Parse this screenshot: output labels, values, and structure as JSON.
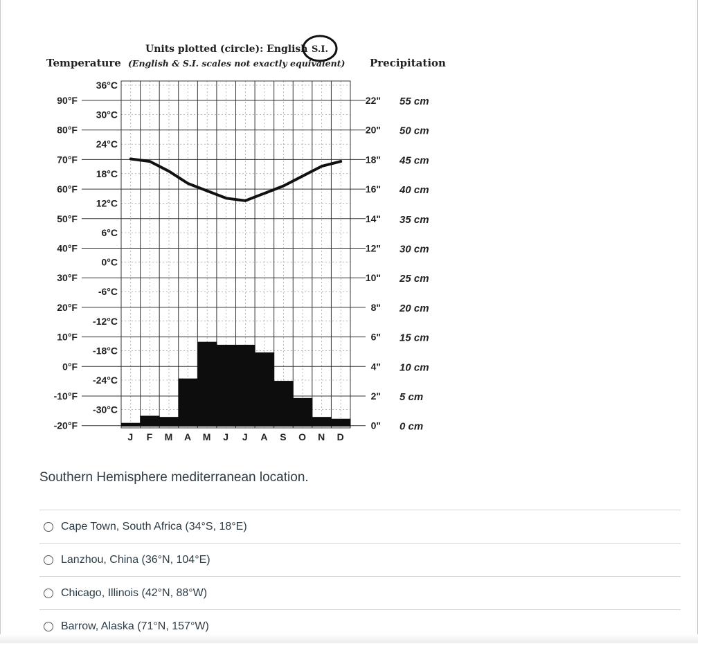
{
  "chart_data": {
    "type": "climograph",
    "units_title": "Units plotted (circle): English",
    "units_circled": "S.I.",
    "left_title": "Temperature",
    "subtitle": "(English & S.I. scales not exactly equivalent)",
    "right_title": "Precipitation",
    "months": [
      "J",
      "F",
      "M",
      "A",
      "M",
      "J",
      "J",
      "A",
      "S",
      "O",
      "N",
      "D"
    ],
    "temp_f_ticks": [
      "90°F",
      "80°F",
      "70°F",
      "60°F",
      "50°F",
      "40°F",
      "30°F",
      "20°F",
      "10°F",
      "0°F",
      "-10°F",
      "-20°F"
    ],
    "temp_f_values": [
      90,
      80,
      70,
      60,
      50,
      40,
      30,
      20,
      10,
      0,
      -10,
      -20
    ],
    "temp_c_ticks": [
      "36°C",
      "30°C",
      "24°C",
      "18°C",
      "12°C",
      "6°C",
      "0°C",
      "-6°C",
      "-12°C",
      "-18°C",
      "-24°C",
      "-30°C"
    ],
    "temp_c_values": [
      36,
      30,
      24,
      18,
      12,
      6,
      0,
      -6,
      -12,
      -18,
      -24,
      -30
    ],
    "precip_in_ticks": [
      "22\"",
      "20\"",
      "18\"",
      "16\"",
      "14\"",
      "12\"",
      "10\"",
      "8\"",
      "6\"",
      "4\"",
      "2\"",
      "0\""
    ],
    "precip_cm_ticks": [
      "55 cm",
      "50 cm",
      "45 cm",
      "40 cm",
      "35 cm",
      "30 cm",
      "25 cm",
      "20 cm",
      "15 cm",
      "10 cm",
      "5 cm",
      "0 cm"
    ],
    "temperature_c": [
      21,
      20.5,
      18.5,
      16,
      14.5,
      13,
      12.5,
      14,
      15.5,
      17.5,
      19.5,
      20.5
    ],
    "precipitation_cm": [
      0.5,
      1.7,
      1.5,
      8.0,
      14.2,
      13.7,
      13.7,
      12.4,
      7.6,
      4.7,
      1.5,
      1.2
    ]
  },
  "question": {
    "caption": "Southern Hemisphere mediterranean location."
  },
  "answers": [
    "Cape Town, South Africa (34°S, 18°E)",
    "Lanzhou, China (36°N, 104°E)",
    "Chicago, Illinois (42°N, 88°W)",
    "Barrow, Alaska (71°N, 157°W)"
  ]
}
